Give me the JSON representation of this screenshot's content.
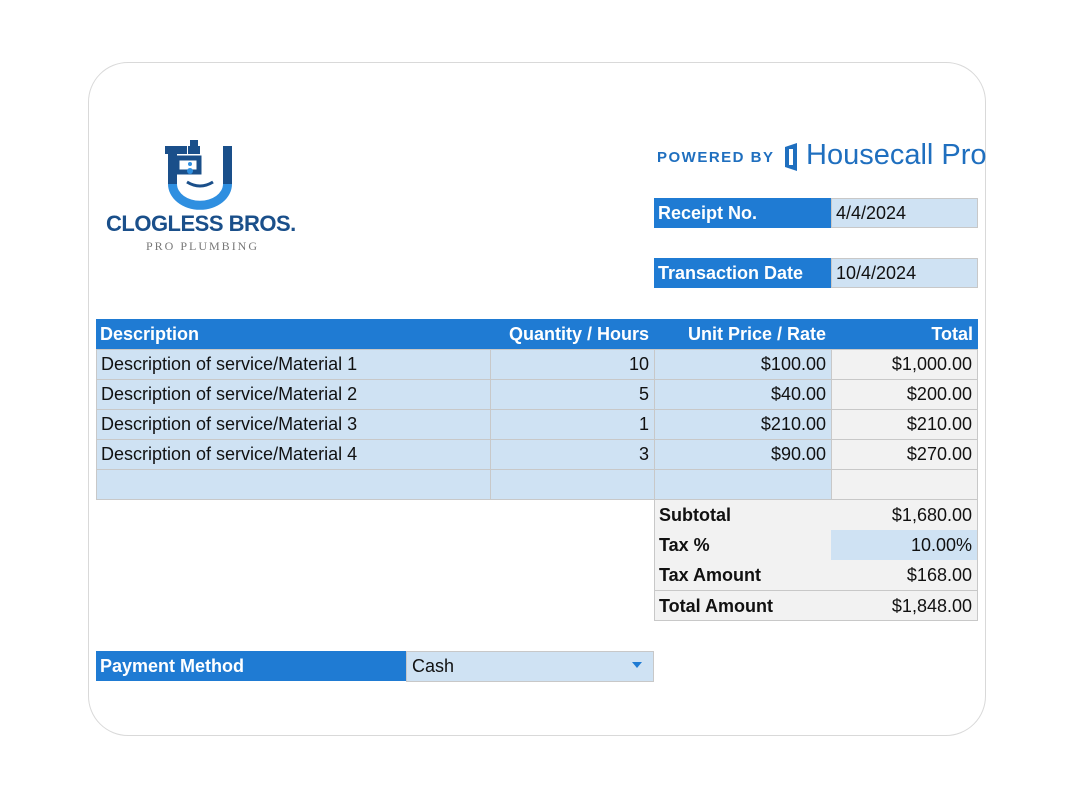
{
  "brand": {
    "name": "CLOGLESS BROS.",
    "tagline": "PRO PLUMBING",
    "powered_by": "POWERED BY",
    "partner": "Housecall Pro",
    "accent": "#1f7bd3",
    "logo_dark": "#1a4f8a"
  },
  "receipt": {
    "receipt_no_label": "Receipt No.",
    "receipt_no_value": "4/4/2024",
    "transaction_date_label": "Transaction Date",
    "transaction_date_value": "10/4/2024"
  },
  "table": {
    "headers": [
      "Description",
      "Quantity / Hours",
      "Unit Price / Rate",
      "Total"
    ],
    "rows": [
      {
        "description": "Description of service/Material 1",
        "qty": "10",
        "price": "$100.00",
        "total": "$1,000.00"
      },
      {
        "description": "Description of service/Material 2",
        "qty": "5",
        "price": "$40.00",
        "total": "$200.00"
      },
      {
        "description": "Description of service/Material 3",
        "qty": "1",
        "price": "$210.00",
        "total": "$210.00"
      },
      {
        "description": "Description of service/Material 4",
        "qty": "3",
        "price": "$90.00",
        "total": "$270.00"
      }
    ]
  },
  "summary": {
    "subtotal_label": "Subtotal",
    "subtotal_value": "$1,680.00",
    "tax_pct_label": "Tax %",
    "tax_pct_value": "10.00%",
    "tax_amount_label": "Tax Amount",
    "tax_amount_value": "$168.00",
    "total_label": "Total Amount",
    "total_value": "$1,848.00"
  },
  "payment": {
    "label": "Payment Method",
    "value": "Cash"
  }
}
